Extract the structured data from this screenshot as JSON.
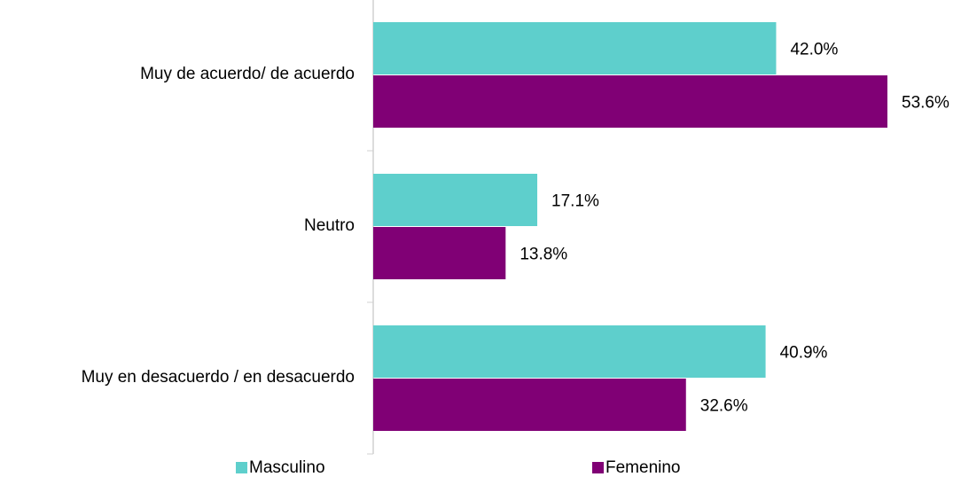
{
  "chart_data": {
    "type": "bar",
    "orientation": "horizontal",
    "categories": [
      "Muy de acuerdo/ de acuerdo",
      "Neutro",
      "Muy en desacuerdo / en desacuerdo"
    ],
    "series": [
      {
        "name": "Masculino",
        "color": "#5ecfcc",
        "values": [
          42.0,
          17.1,
          40.9
        ],
        "value_labels": [
          "42.0%",
          "17.1%",
          "40.9%"
        ]
      },
      {
        "name": "Femenino",
        "color": "#800075",
        "values": [
          53.6,
          13.8,
          32.6
        ],
        "value_labels": [
          "53.6%",
          "13.8%",
          "32.6%"
        ]
      }
    ],
    "legend": "bottom"
  }
}
